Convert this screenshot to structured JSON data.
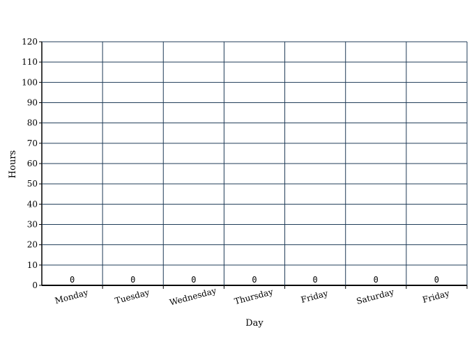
{
  "chart_data": {
    "type": "bar",
    "title": "",
    "xlabel": "Day",
    "ylabel": "Hours",
    "categories": [
      "Monday",
      "Tuesday",
      "Wednesday",
      "Thursday",
      "Friday",
      "Saturday",
      "Friday"
    ],
    "values": [
      0,
      0,
      0,
      0,
      0,
      0,
      0
    ],
    "ylim": [
      0,
      120
    ],
    "yticks": [
      "0",
      "10",
      "20",
      "30",
      "40",
      "50",
      "60",
      "70",
      "80",
      "90",
      "100",
      "110",
      "120"
    ],
    "grid": true,
    "legend": "none"
  },
  "colors": {
    "grid": "#1f3b57",
    "axis": "#000000",
    "bar": "#3366cc"
  }
}
